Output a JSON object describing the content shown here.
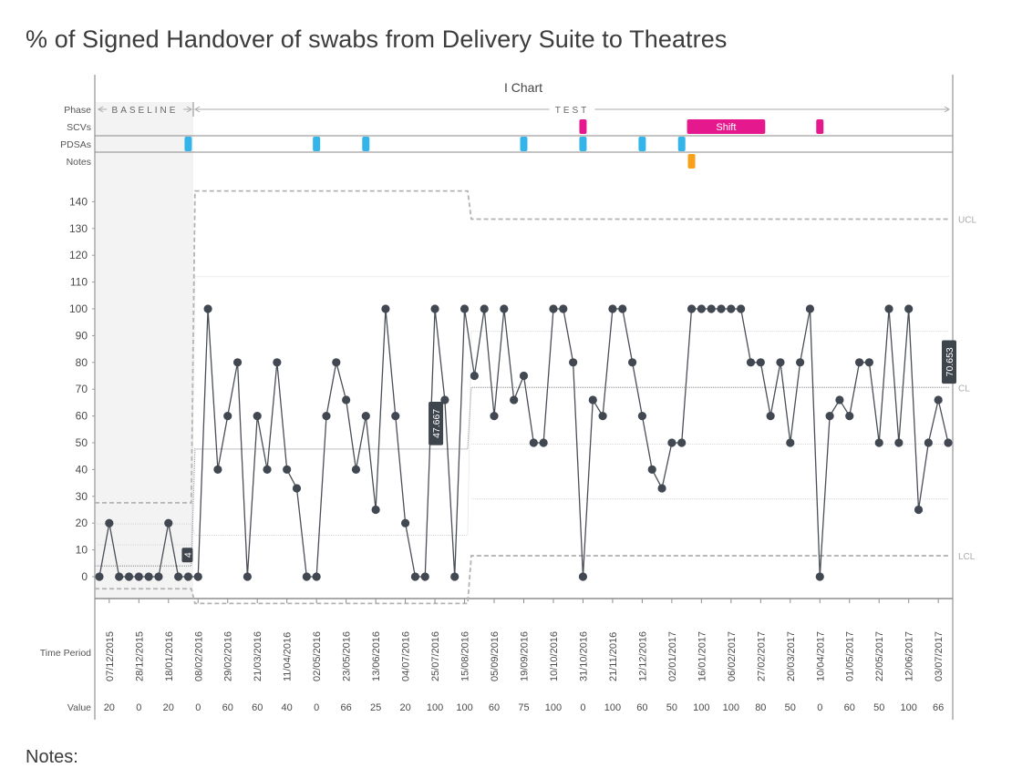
{
  "page": {
    "title": "% of Signed Handover of swabs from Delivery Suite to Theatres",
    "notes_label": "Notes:"
  },
  "chart_data": {
    "type": "line",
    "chart_title": "I Chart",
    "row_labels": {
      "phase": "Phase",
      "scvs": "SCVs",
      "pdsas": "PDSAs",
      "notes": "Notes"
    },
    "phases": [
      {
        "label": "BASELINE",
        "start_index": 0,
        "end_index": 9
      },
      {
        "label": "TEST",
        "start_index": 10,
        "end_index": 87
      }
    ],
    "scv_markers": [
      {
        "label": "",
        "start_index": 49,
        "end_index": 49
      },
      {
        "label": "Shift",
        "start_index": 60,
        "end_index": 67
      },
      {
        "label": "",
        "start_index": 73,
        "end_index": 73
      }
    ],
    "pdsa_markers": [
      9,
      22,
      27,
      43,
      49,
      55,
      59
    ],
    "note_markers": [
      60
    ],
    "y_axis": {
      "min": -10,
      "max": 145,
      "ticks": [
        0,
        10,
        20,
        30,
        40,
        50,
        60,
        70,
        80,
        90,
        100,
        110,
        120,
        130,
        140
      ]
    },
    "values": [
      0,
      20,
      0,
      0,
      0,
      0,
      0,
      20,
      0,
      0,
      0,
      100,
      40,
      60,
      80,
      0,
      60,
      40,
      80,
      40,
      33,
      0,
      0,
      60,
      80,
      66,
      40,
      60,
      25,
      100,
      60,
      20,
      0,
      0,
      100,
      66,
      0,
      100,
      75,
      100,
      60,
      100,
      66,
      75,
      50,
      50,
      100,
      100,
      80,
      0,
      66,
      60,
      100,
      100,
      80,
      60,
      40,
      33,
      50,
      50,
      100,
      100,
      100,
      100,
      100,
      100,
      80,
      80,
      60,
      80,
      50,
      80,
      100,
      0,
      60,
      66,
      60,
      80,
      80,
      50,
      100,
      50,
      100,
      25,
      50,
      66,
      50
    ],
    "x_tick_labels": [
      "07/12/2015",
      "28/12/2015",
      "18/01/2016",
      "08/02/2016",
      "29/02/2016",
      "21/03/2016",
      "11/04/2016",
      "02/05/2016",
      "23/05/2016",
      "13/06/2016",
      "04/07/2016",
      "25/07/2016",
      "15/08/2016",
      "05/09/2016",
      "19/09/2016",
      "10/10/2016",
      "31/10/2016",
      "21/11/2016",
      "12/12/2016",
      "02/01/2017",
      "16/01/2017",
      "06/02/2017",
      "27/02/2017",
      "20/03/2017",
      "10/04/2017",
      "01/05/2017",
      "22/05/2017",
      "12/06/2017",
      "03/07/2017"
    ],
    "x_tick_values": [
      "20",
      "0",
      "20",
      "0",
      "60",
      "60",
      "40",
      "0",
      "66",
      "25",
      "20",
      "100",
      "100",
      "60",
      "75",
      "100",
      "0",
      "100",
      "60",
      "50",
      "100",
      "100",
      "80",
      "50",
      "0",
      "60",
      "50",
      "100",
      "66"
    ],
    "x_axis_label": "Time Period",
    "value_row_label": "Value",
    "limits": [
      {
        "start_index": 0,
        "end_index": 9,
        "cl": 4,
        "ucl": 27.6,
        "lcl": -4.5,
        "upper_1sigma": 11.9,
        "upper_2sigma": 19.7
      },
      {
        "start_index": 10,
        "end_index": 37,
        "cl": 47.667,
        "ucl": 144,
        "lcl": -10,
        "upper_1sigma": 112,
        "upper_2sigma": 15.5
      },
      {
        "start_index": 38,
        "end_index": 87,
        "cl": 70.653,
        "ucl": 133.5,
        "lcl": 7.8,
        "upper_1sigma": 112,
        "upper_2sigma": 91.6,
        "lower_2sigma": 49.5,
        "lower_1sigma": 29
      }
    ],
    "cl_value_labels": [
      "4",
      "47.667",
      "70.653"
    ],
    "limit_labels": {
      "ucl": "UCL",
      "cl": "CL",
      "lcl": "LCL"
    },
    "colors": {
      "line": "#4a4f57",
      "point": "#414851",
      "scv": "#e5198d",
      "pdsa": "#33b5ea",
      "note": "#f9a01b",
      "limit": "#b9b9b9",
      "baseline_shade": "#f3f3f3"
    }
  }
}
